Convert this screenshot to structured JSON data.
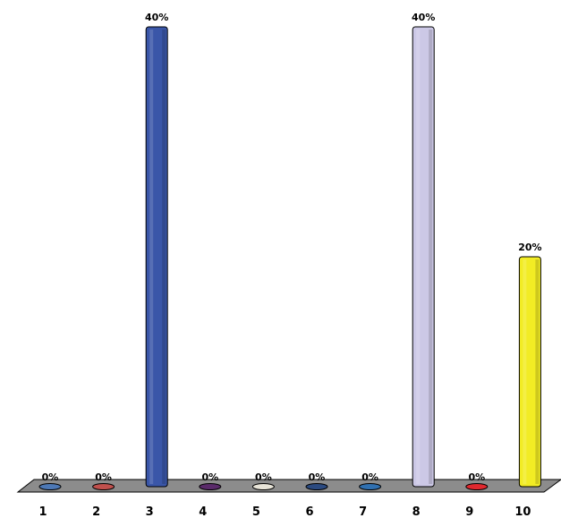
{
  "chart_data": {
    "type": "bar",
    "categories": [
      "1",
      "2",
      "3",
      "4",
      "5",
      "6",
      "7",
      "8",
      "9",
      "10"
    ],
    "values": [
      0,
      0,
      40,
      0,
      0,
      0,
      0,
      40,
      0,
      20
    ],
    "value_labels": [
      "0%",
      "0%",
      "40%",
      "0%",
      "0%",
      "0%",
      "0%",
      "40%",
      "0%",
      "20%"
    ],
    "bar_colors": [
      "#4d78b5",
      "#c0504d",
      "#3a56a8",
      "#5a2a6a",
      "#e8e4d8",
      "#2b4a80",
      "#3070b0",
      "#ccc8e6",
      "#e0282e",
      "#f2ec24"
    ],
    "ylim": [
      0,
      40
    ],
    "grid": false,
    "legend": "none",
    "floor_color": "#8c8c8c",
    "title": "",
    "xlabel": "",
    "ylabel": ""
  }
}
